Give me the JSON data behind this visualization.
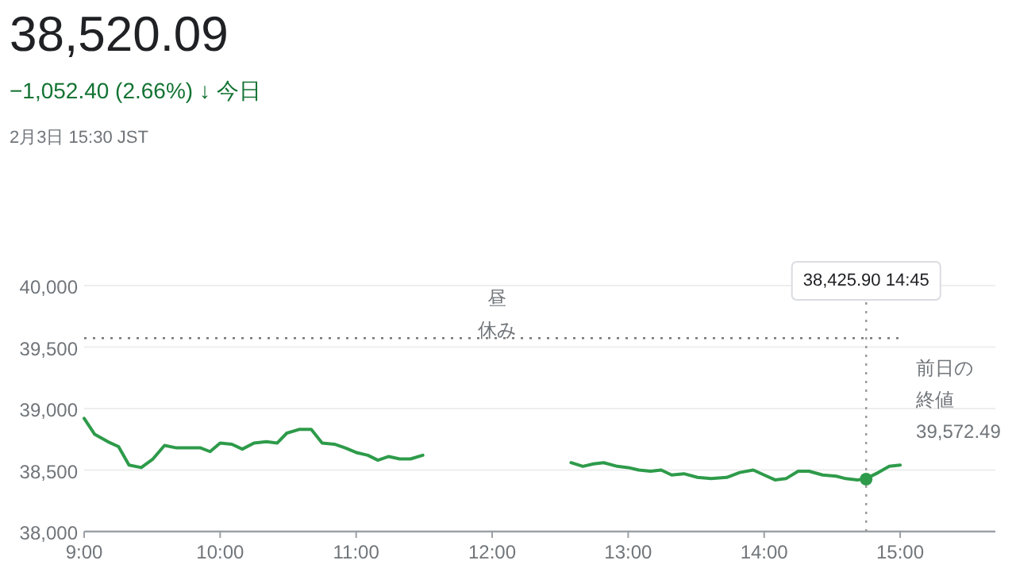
{
  "chart_data": {
    "type": "line",
    "title": "38,520.09",
    "subtitle": "−1,052.40 (2.66%) ↓ 今日",
    "annotations": [
      "2月3日 15:30 JST",
      "38,425.90  14:45",
      "昼休み"
    ],
    "xlim": [
      9,
      15.7
    ],
    "xticks": [
      {
        "value": 9,
        "label": "9:00"
      },
      {
        "value": 10,
        "label": "10:00"
      },
      {
        "value": 11,
        "label": "11:00"
      },
      {
        "value": 12,
        "label": "12:00"
      },
      {
        "value": 13,
        "label": "13:00"
      },
      {
        "value": 14,
        "label": "14:00"
      },
      {
        "value": 15,
        "label": "15:00"
      }
    ],
    "ylim": [
      38000,
      40000
    ],
    "yticks": [
      {
        "value": 38000,
        "label": "38,000"
      },
      {
        "value": 38500,
        "label": "38,500"
      },
      {
        "value": 39000,
        "label": "39,000"
      },
      {
        "value": 39500,
        "label": "39,500"
      },
      {
        "value": 40000,
        "label": "40,000"
      }
    ],
    "grid": "y",
    "ref_lines": [
      {
        "axis": "y",
        "value": 39572.49,
        "label": "前日の終値39,572.49",
        "line_style": "dotted",
        "color": "#777777"
      },
      {
        "axis": "x",
        "value": 14.75,
        "line_style": "dotted",
        "color": "#999999"
      }
    ],
    "series": [
      {
        "color": "#2e9b4a",
        "x": [
          9.0,
          9.078,
          9.175,
          9.253,
          9.33,
          9.42,
          9.506,
          9.591,
          9.68,
          9.778,
          9.856,
          9.926,
          10.0,
          10.086,
          10.163,
          10.249,
          10.34,
          10.42,
          10.49,
          10.58,
          10.67,
          10.75,
          10.84,
          10.92,
          11.008,
          11.086,
          11.16,
          11.24,
          11.32,
          11.4,
          11.49
        ],
        "values": [
          38920,
          38790,
          38730,
          38690,
          38540,
          38520,
          38590,
          38700,
          38680,
          38680,
          38680,
          38650,
          38720,
          38710,
          38670,
          38720,
          38730,
          38720,
          38800,
          38830,
          38830,
          38720,
          38710,
          38680,
          38640,
          38620,
          38580,
          38610,
          38590,
          38590,
          38620
        ]
      },
      {
        "color": "#2e9b4a",
        "x": [
          12.58,
          12.667,
          12.745,
          12.82,
          12.92,
          13.0,
          13.078,
          13.165,
          13.243,
          13.32,
          13.41,
          13.51,
          13.61,
          13.725,
          13.82,
          13.92,
          14.0,
          14.08,
          14.16,
          14.25,
          14.33,
          14.43,
          14.53,
          14.6,
          14.686,
          14.75,
          14.84,
          14.92,
          15.0
        ],
        "values": [
          38560,
          38530,
          38550,
          38560,
          38530,
          38520,
          38500,
          38490,
          38500,
          38460,
          38470,
          38440,
          38430,
          38440,
          38480,
          38500,
          38460,
          38420,
          38430,
          38490,
          38490,
          38460,
          38450,
          38430,
          38420,
          38430,
          38480,
          38530,
          38540
        ]
      },
      {
        "type": "scatter",
        "color": "#2e9b4a",
        "x": [
          14.75
        ],
        "values": [
          38425.9
        ]
      }
    ]
  }
}
